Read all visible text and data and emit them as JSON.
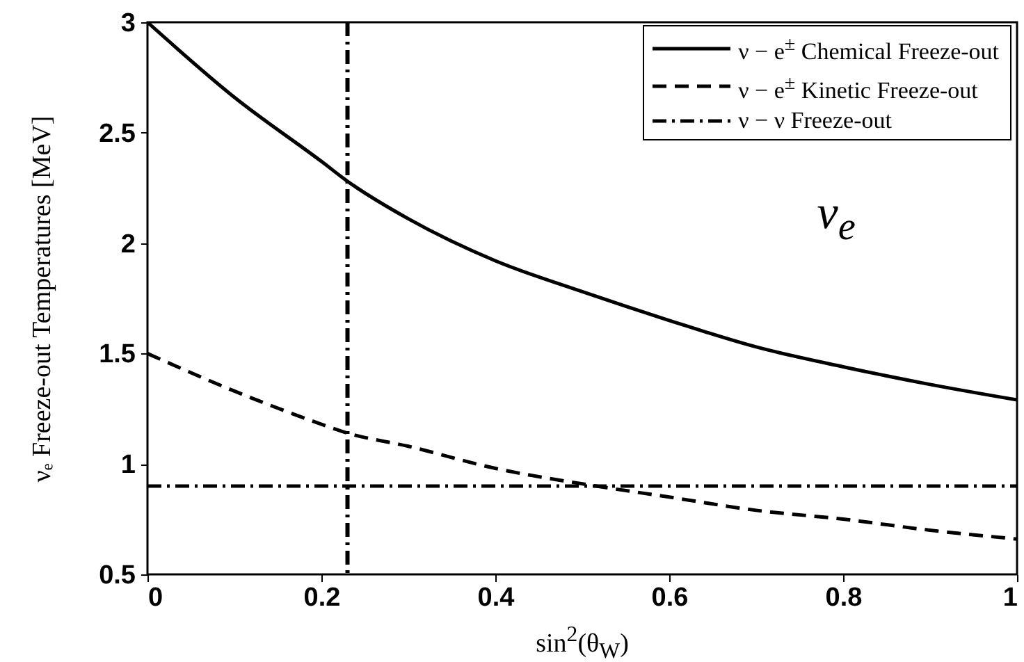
{
  "chart_data": {
    "type": "line",
    "xlabel": "sin$^{2}$(θ$_{W}$)",
    "ylabel": "νₑ Freeze-out Temperatures [MeV]",
    "annotations": [
      "ν$_{e}$"
    ],
    "x": [
      0,
      0.1,
      0.2,
      0.23,
      0.3,
      0.4,
      0.5,
      0.6,
      0.7,
      0.8,
      0.9,
      1
    ],
    "series": [
      {
        "name": "ν − e$^{±}$ Chemical Freeze-out",
        "color": "#000000",
        "line_style": "solid",
        "values": [
          3,
          2.66,
          2.37,
          2.28,
          2.11,
          1.92,
          1.78,
          1.65,
          1.53,
          1.44,
          1.36,
          1.29
        ]
      },
      {
        "name": "ν − e$^{±}$ Kinetic Freeze-out",
        "color": "#000000",
        "line_style": "dashed",
        "values": [
          1.5,
          1.33,
          1.18,
          1.14,
          1.08,
          0.98,
          0.91,
          0.85,
          0.79,
          0.75,
          0.7,
          0.66
        ]
      },
      {
        "name": "ν − ν Freeze-out",
        "color": "#000000",
        "line_style": "dashdot",
        "x": [
          0,
          1
        ],
        "values": [
          0.9,
          0.9
        ]
      }
    ],
    "ref_lines": [
      {
        "axis": "x",
        "value": 0.23,
        "color": "#000000",
        "line_style": "dashdot"
      }
    ],
    "xlim": [
      0,
      1
    ],
    "xticks": [
      0,
      0.2,
      0.4,
      0.6,
      0.8,
      1
    ],
    "ylim": [
      0.5,
      3
    ],
    "yticks": [
      0.5,
      1,
      1.5,
      2,
      2.5,
      3
    ],
    "grid": false,
    "legend": "top right"
  }
}
